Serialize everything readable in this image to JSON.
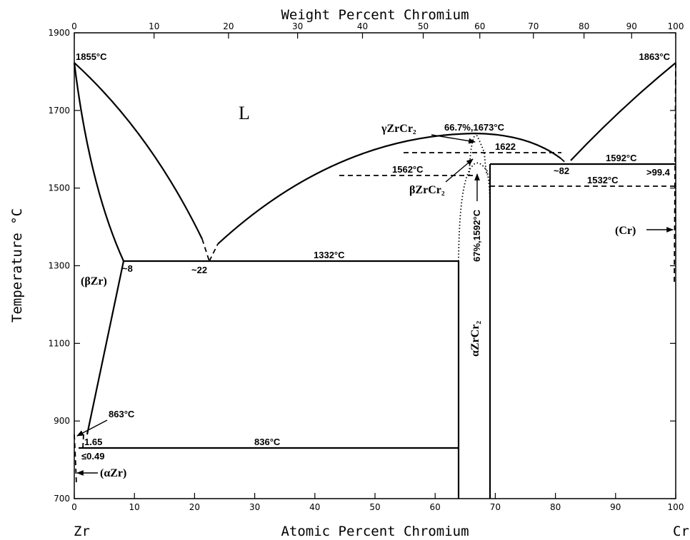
{
  "diagram": {
    "top_axis_title": "Weight Percent Chromium",
    "bottom_axis_title": "Atomic Percent Chromium",
    "left_axis_title": "Temperature °C",
    "left_element": "Zr",
    "right_element": "Cr",
    "top_ticks": [
      "0",
      "10",
      "20",
      "30",
      "40",
      "50",
      "60",
      "70",
      "80",
      "90",
      "100"
    ],
    "bottom_ticks": [
      "0",
      "10",
      "20",
      "30",
      "40",
      "50",
      "60",
      "70",
      "80",
      "90",
      "100"
    ],
    "y_ticks": [
      "700",
      "900",
      "1100",
      "1300",
      "1500",
      "1700",
      "1900"
    ],
    "labels": {
      "liquid": "L",
      "t_zr_melt": "1855°C",
      "t_cr_melt": "1863°C",
      "gamma_phase": "γZrCr₂",
      "congruent_top": "66.7%,1673°C",
      "t_1622": "1622",
      "t_1592": "1592°C",
      "t_1562": "1562°C",
      "beta_phase": "βZrCr₂",
      "t_1532": "1532°C",
      "x_82": "~82",
      "x_99_4": ">99.4",
      "cr_phase": "(Cr)",
      "congruent_beta": "67%,1592°C",
      "alpha_phase": "αZrCr₂",
      "t_1332": "1332°C",
      "x_8": "~8",
      "x_22": "~22",
      "beta_zr": "(βZr)",
      "t_863": "863°C",
      "x_1_65": "1.65",
      "x_0_49": "≤0.49",
      "t_836": "836°C",
      "alpha_zr": "(αZr)"
    }
  }
}
